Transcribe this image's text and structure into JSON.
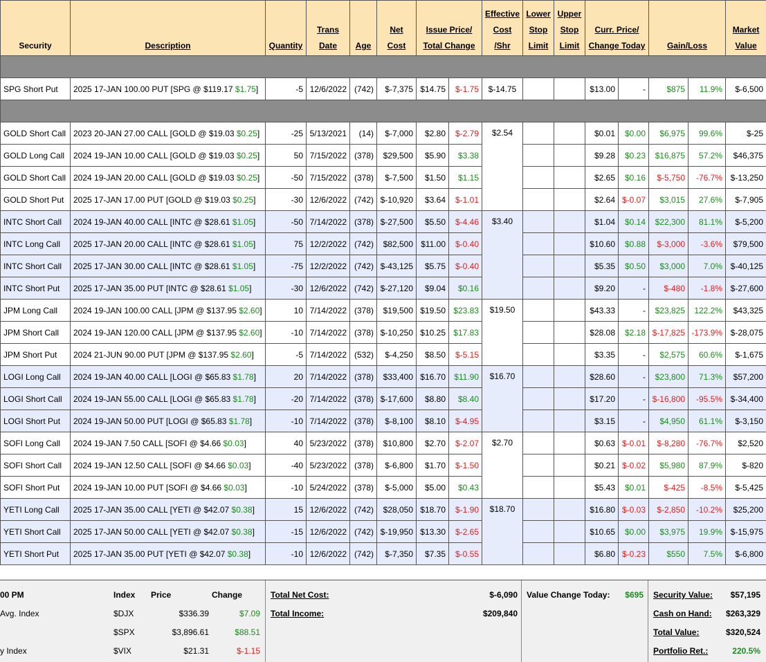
{
  "header": {
    "security": "Security",
    "description": "Description",
    "quantity": "Quantity",
    "trans_date_1": "Trans",
    "trans_date_2": "Date",
    "age": "Age",
    "net_cost_1": "Net",
    "net_cost_2": "Cost",
    "issue_price_1": "Issue Price/",
    "issue_price_2": "Total Change",
    "eff_cost_1": "Effective",
    "eff_cost_2": "Cost",
    "eff_cost_3": "/Shr",
    "lower_stop_1": "Lower",
    "lower_stop_2": "Stop",
    "lower_stop_3": "Limit",
    "upper_stop_1": "Upper",
    "upper_stop_2": "Stop",
    "upper_stop_3": "Limit",
    "curr_price_1": "Curr. Price/",
    "curr_price_2": "Change Today",
    "gain_loss": "Gain/Loss",
    "market_value_1": "Market",
    "market_value_2": "Value"
  },
  "spg": {
    "security": "SPG Short Put",
    "desc": "2025 17-JAN 100.00 PUT [SPG @ $119.17 ",
    "desc_chg": "$1.75",
    "desc_end": "]",
    "qty": "-5",
    "date": "12/6/2022",
    "age": "(742)",
    "net": "$-7,375",
    "issue": "$14.75",
    "total_chg": "$-1.75",
    "eff": "$-14.75",
    "curr": "$13.00",
    "chg_today": "-",
    "gain": "$875",
    "gain_pct": "11.9%",
    "mv": "$-6,500"
  },
  "rows": [
    {
      "security": "GOLD Short Call",
      "desc": "2023 20-JAN 27.00 CALL [GOLD @ $19.03 ",
      "desc_chg": "$0.25",
      "qty": "-25",
      "date": "5/13/2021",
      "age": "(14)",
      "net": "$-7,000",
      "issue": "$2.80",
      "total_chg": "$-2.79",
      "curr": "$0.01",
      "chg_today": "$0.00",
      "gain": "$6,975",
      "gain_pct": "99.6%",
      "mv": "$-25"
    },
    {
      "security": "GOLD Long Call",
      "desc": "2024 19-JAN 10.00 CALL [GOLD @ $19.03 ",
      "desc_chg": "$0.25",
      "qty": "50",
      "date": "7/15/2022",
      "age": "(378)",
      "net": "$29,500",
      "issue": "$5.90",
      "total_chg": "$3.38",
      "curr": "$9.28",
      "chg_today": "$0.23",
      "gain": "$16,875",
      "gain_pct": "57.2%",
      "mv": "$46,375"
    },
    {
      "security": "GOLD Short Call",
      "desc": "2024 19-JAN 20.00 CALL [GOLD @ $19.03 ",
      "desc_chg": "$0.25",
      "qty": "-50",
      "date": "7/15/2022",
      "age": "(378)",
      "net": "$-7,500",
      "issue": "$1.50",
      "total_chg": "$1.15",
      "curr": "$2.65",
      "chg_today": "$0.16",
      "gain": "$-5,750",
      "gain_pct": "-76.7%",
      "mv": "$-13,250"
    },
    {
      "security": "GOLD Short Put",
      "desc": "2025 17-JAN 17.00 PUT [GOLD @ $19.03 ",
      "desc_chg": "$0.25",
      "qty": "-30",
      "date": "12/6/2022",
      "age": "(742)",
      "net": "$-10,920",
      "issue": "$3.64",
      "total_chg": "$-1.01",
      "curr": "$2.64",
      "chg_today": "$-0.07",
      "gain": "$3,015",
      "gain_pct": "27.6%",
      "mv": "$-7,905"
    },
    {
      "security": "INTC Short Call",
      "desc": "2024 19-JAN 40.00 CALL [INTC @ $28.61 ",
      "desc_chg": "$1.05",
      "qty": "-50",
      "date": "7/14/2022",
      "age": "(378)",
      "net": "$-27,500",
      "issue": "$5.50",
      "total_chg": "$-4.46",
      "curr": "$1.04",
      "chg_today": "$0.14",
      "gain": "$22,300",
      "gain_pct": "81.1%",
      "mv": "$-5,200"
    },
    {
      "security": "INTC Long Call",
      "desc": "2025 17-JAN 20.00 CALL [INTC @ $28.61 ",
      "desc_chg": "$1.05",
      "qty": "75",
      "date": "12/2/2022",
      "age": "(742)",
      "net": "$82,500",
      "issue": "$11.00",
      "total_chg": "$-0.40",
      "curr": "$10.60",
      "chg_today": "$0.88",
      "gain": "$-3,000",
      "gain_pct": "-3.6%",
      "mv": "$79,500"
    },
    {
      "security": "INTC Short Call",
      "desc": "2025 17-JAN 30.00 CALL [INTC @ $28.61 ",
      "desc_chg": "$1.05",
      "qty": "-75",
      "date": "12/2/2022",
      "age": "(742)",
      "net": "$-43,125",
      "issue": "$5.75",
      "total_chg": "$-0.40",
      "curr": "$5.35",
      "chg_today": "$0.50",
      "gain": "$3,000",
      "gain_pct": "7.0%",
      "mv": "$-40,125"
    },
    {
      "security": "INTC Short Put",
      "desc": "2025 17-JAN 35.00 PUT [INTC @ $28.61 ",
      "desc_chg": "$1.05",
      "qty": "-30",
      "date": "12/6/2022",
      "age": "(742)",
      "net": "$-27,120",
      "issue": "$9.04",
      "total_chg": "$0.16",
      "curr": "$9.20",
      "chg_today": "-",
      "gain": "$-480",
      "gain_pct": "-1.8%",
      "mv": "$-27,600"
    },
    {
      "security": "JPM Long Call",
      "desc": "2024 19-JAN 100.00 CALL [JPM @ $137.95 ",
      "desc_chg": "$2.60",
      "qty": "10",
      "date": "7/14/2022",
      "age": "(378)",
      "net": "$19,500",
      "issue": "$19.50",
      "total_chg": "$23.83",
      "curr": "$43.33",
      "chg_today": "-",
      "gain": "$23,825",
      "gain_pct": "122.2%",
      "mv": "$43,325"
    },
    {
      "security": "JPM Short Call",
      "desc": "2024 19-JAN 120.00 CALL [JPM @ $137.95 ",
      "desc_chg": "$2.60",
      "qty": "-10",
      "date": "7/14/2022",
      "age": "(378)",
      "net": "$-10,250",
      "issue": "$10.25",
      "total_chg": "$17.83",
      "curr": "$28.08",
      "chg_today": "$2.18",
      "gain": "$-17,825",
      "gain_pct": "-173.9%",
      "mv": "$-28,075"
    },
    {
      "security": "JPM Short Put",
      "desc": "2024 21-JUN 90.00 PUT [JPM @ $137.95 ",
      "desc_chg": "$2.60",
      "qty": "-5",
      "date": "7/14/2022",
      "age": "(532)",
      "net": "$-4,250",
      "issue": "$8.50",
      "total_chg": "$-5.15",
      "curr": "$3.35",
      "chg_today": "-",
      "gain": "$2,575",
      "gain_pct": "60.6%",
      "mv": "$-1,675"
    },
    {
      "security": "LOGI Long Call",
      "desc": "2024 19-JAN 40.00 CALL [LOGI @ $65.83 ",
      "desc_chg": "$1.78",
      "qty": "20",
      "date": "7/14/2022",
      "age": "(378)",
      "net": "$33,400",
      "issue": "$16.70",
      "total_chg": "$11.90",
      "curr": "$28.60",
      "chg_today": "-",
      "gain": "$23,800",
      "gain_pct": "71.3%",
      "mv": "$57,200"
    },
    {
      "security": "LOGI Short Call",
      "desc": "2024 19-JAN 55.00 CALL [LOGI @ $65.83 ",
      "desc_chg": "$1.78",
      "qty": "-20",
      "date": "7/14/2022",
      "age": "(378)",
      "net": "$-17,600",
      "issue": "$8.80",
      "total_chg": "$8.40",
      "curr": "$17.20",
      "chg_today": "-",
      "gain": "$-16,800",
      "gain_pct": "-95.5%",
      "mv": "$-34,400"
    },
    {
      "security": "LOGI Short Put",
      "desc": "2024 19-JAN 50.00 PUT [LOGI @ $65.83 ",
      "desc_chg": "$1.78",
      "qty": "-10",
      "date": "7/14/2022",
      "age": "(378)",
      "net": "$-8,100",
      "issue": "$8.10",
      "total_chg": "$-4.95",
      "curr": "$3.15",
      "chg_today": "-",
      "gain": "$4,950",
      "gain_pct": "61.1%",
      "mv": "$-3,150"
    },
    {
      "security": "SOFI Long Call",
      "desc": "2024 19-JAN 7.50 CALL [SOFI @ $4.66 ",
      "desc_chg": "$0.03",
      "qty": "40",
      "date": "5/23/2022",
      "age": "(378)",
      "net": "$10,800",
      "issue": "$2.70",
      "total_chg": "$-2.07",
      "curr": "$0.63",
      "chg_today": "$-0.01",
      "gain": "$-8,280",
      "gain_pct": "-76.7%",
      "mv": "$2,520"
    },
    {
      "security": "SOFI Short Call",
      "desc": "2024 19-JAN 12.50 CALL [SOFI @ $4.66 ",
      "desc_chg": "$0.03",
      "qty": "-40",
      "date": "5/23/2022",
      "age": "(378)",
      "net": "$-6,800",
      "issue": "$1.70",
      "total_chg": "$-1.50",
      "curr": "$0.21",
      "chg_today": "$-0.02",
      "gain": "$5,980",
      "gain_pct": "87.9%",
      "mv": "$-820"
    },
    {
      "security": "SOFI Short Put",
      "desc": "2024 19-JAN 10.00 PUT [SOFI @ $4.66 ",
      "desc_chg": "$0.03",
      "qty": "-10",
      "date": "5/24/2022",
      "age": "(378)",
      "net": "$-5,000",
      "issue": "$5.00",
      "total_chg": "$0.43",
      "curr": "$5.43",
      "chg_today": "$0.01",
      "gain": "$-425",
      "gain_pct": "-8.5%",
      "mv": "$-5,425"
    },
    {
      "security": "YETI Long Call",
      "desc": "2025 17-JAN 35.00 CALL [YETI @ $42.07 ",
      "desc_chg": "$0.38",
      "qty": "15",
      "date": "12/6/2022",
      "age": "(742)",
      "net": "$28,050",
      "issue": "$18.70",
      "total_chg": "$-1.90",
      "curr": "$16.80",
      "chg_today": "$-0.03",
      "gain": "$-2,850",
      "gain_pct": "-10.2%",
      "mv": "$25,200"
    },
    {
      "security": "YETI Short Call",
      "desc": "2025 17-JAN 50.00 CALL [YETI @ $42.07 ",
      "desc_chg": "$0.38",
      "qty": "-15",
      "date": "12/6/2022",
      "age": "(742)",
      "net": "$-19,950",
      "issue": "$13.30",
      "total_chg": "$-2.65",
      "curr": "$10.65",
      "chg_today": "$0.00",
      "gain": "$3,975",
      "gain_pct": "19.9%",
      "mv": "$-15,975"
    },
    {
      "security": "YETI Short Put",
      "desc": "2025 17-JAN 35.00 PUT [YETI @ $42.07 ",
      "desc_chg": "$0.38",
      "qty": "-10",
      "date": "12/6/2022",
      "age": "(742)",
      "net": "$-7,350",
      "issue": "$7.35",
      "total_chg": "$-0.55",
      "curr": "$6.80",
      "chg_today": "$-0.23",
      "gain": "$550",
      "gain_pct": "7.5%",
      "mv": "$-6,800"
    }
  ],
  "effective_cost": {
    "gold": "$2.54",
    "intc": "$3.40",
    "jpm": "$19.50",
    "logi": "$16.70",
    "sofi": "$2.70",
    "yeti": "$18.70"
  },
  "desc_end": "]",
  "footer": {
    "time": "00 PM",
    "index_hdr": "Index",
    "price_hdr": "Price",
    "change_hdr": "Change",
    "label1": "Avg. Index",
    "label3": "y Index",
    "idx": [
      {
        "sym": "$DJX",
        "price": "$336.39",
        "chg": "$7.09"
      },
      {
        "sym": "$SPX",
        "price": "$3,896.61",
        "chg": "$88.51"
      },
      {
        "sym": "$VIX",
        "price": "$21.31",
        "chg": "$-1.15"
      }
    ],
    "total_net_cost_label": "Total Net Cost:",
    "total_net_cost": "$-6,090",
    "total_income_label": "Total Income:",
    "total_income": "$209,840",
    "value_change_label": "Value Change Today:",
    "value_change": "$695",
    "security_value_label": "Security Value:",
    "security_value": "$57,195",
    "cash_label": "Cash on Hand:",
    "cash": "$263,329",
    "total_value_label": "Total Value:",
    "total_value": "$320,524",
    "portfolio_ret_label": "Portfolio Ret.:",
    "portfolio_ret": "220.5%"
  },
  "colors": {
    "header_bg": "#fce4b4",
    "separator": "#8c8c8c",
    "blue_row": "#e6ecfb",
    "positive": "#1e8a1e",
    "negative": "#e0201e"
  }
}
